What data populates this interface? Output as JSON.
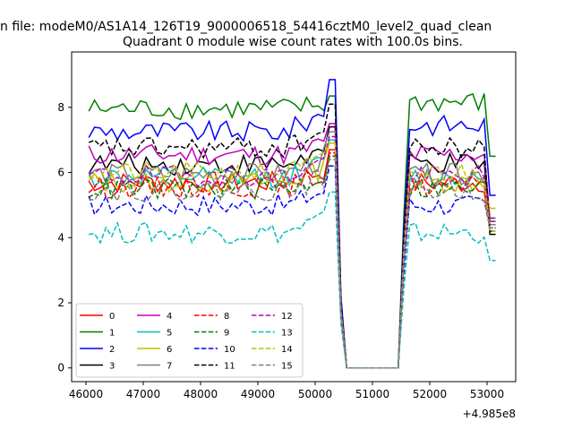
{
  "chart_data": {
    "type": "line",
    "suptitle": "n file: modeM0/AS1A14_126T19_9000006518_54416cztM0_level2_quad_clean",
    "title": "Quadrant 0 module wise count rates with 100.0s bins.",
    "xlabel": "",
    "ylabel": "",
    "x_offset_label": "+4.985e8",
    "xlim": [
      45750,
      53500
    ],
    "ylim": [
      -0.42,
      9.7
    ],
    "xticks": [
      46000,
      47000,
      48000,
      49000,
      50000,
      51000,
      52000,
      53000
    ],
    "yticks": [
      0,
      2,
      4,
      6,
      8
    ],
    "grid": false,
    "legend_position": "lower-left",
    "x": {
      "start": 46050,
      "step": 100,
      "count": 72
    },
    "series": [
      {
        "name": "0",
        "color": "#ff0000",
        "dash": "solid",
        "baseline": 5.7,
        "early_peak": 6.7
      },
      {
        "name": "1",
        "color": "#008000",
        "dash": "solid",
        "baseline": 7.95,
        "early_peak": 8.35
      },
      {
        "name": "2",
        "color": "#0000ff",
        "dash": "solid",
        "baseline": 7.25,
        "early_peak": 8.85
      },
      {
        "name": "3",
        "color": "#000000",
        "dash": "solid",
        "baseline": 6.25,
        "early_peak": 7.4
      },
      {
        "name": "4",
        "color": "#bf00bf",
        "dash": "solid",
        "baseline": 6.55,
        "early_peak": 7.5
      },
      {
        "name": "5",
        "color": "#00bfbf",
        "dash": "solid",
        "baseline": 5.85,
        "early_peak": 7.0
      },
      {
        "name": "6",
        "color": "#bfbf00",
        "dash": "solid",
        "baseline": 5.7,
        "early_peak": 6.9
      },
      {
        "name": "7",
        "color": "#808080",
        "dash": "solid",
        "baseline": 5.95,
        "early_peak": 7.25
      },
      {
        "name": "8",
        "color": "#ff0000",
        "dash": "dashed",
        "baseline": 5.55,
        "early_peak": 6.6
      },
      {
        "name": "9",
        "color": "#008000",
        "dash": "dashed",
        "baseline": 5.5,
        "early_peak": 6.5
      },
      {
        "name": "10",
        "color": "#0000ff",
        "dash": "dashed",
        "baseline": 5.0,
        "early_peak": 6.2
      },
      {
        "name": "11",
        "color": "#000000",
        "dash": "dashed",
        "baseline": 6.75,
        "early_peak": 8.1
      },
      {
        "name": "12",
        "color": "#bf00bf",
        "dash": "dashed",
        "baseline": 5.9,
        "early_peak": 7.1
      },
      {
        "name": "13",
        "color": "#00bfbf",
        "dash": "dashed",
        "baseline": 4.15,
        "early_peak": 5.4
      },
      {
        "name": "14",
        "color": "#bfbf00",
        "dash": "dashed",
        "baseline": 6.0,
        "early_peak": 6.9
      },
      {
        "name": "15",
        "color": "#808080",
        "dash": "dashed",
        "baseline": 5.45,
        "early_peak": 6.4
      }
    ],
    "gap": {
      "drop_start_x": 50350,
      "zero_start_x": 50550,
      "zero_end_x": 51450,
      "rise_end_x": 51650
    },
    "late_end_values": [
      4.4,
      6.5,
      5.3,
      4.1,
      4.6,
      4.6,
      4.9,
      4.4,
      4.6,
      4.5,
      4.3,
      4.2,
      4.5,
      3.3,
      4.2,
      4.3
    ],
    "noise_amplitude": 0.33
  }
}
